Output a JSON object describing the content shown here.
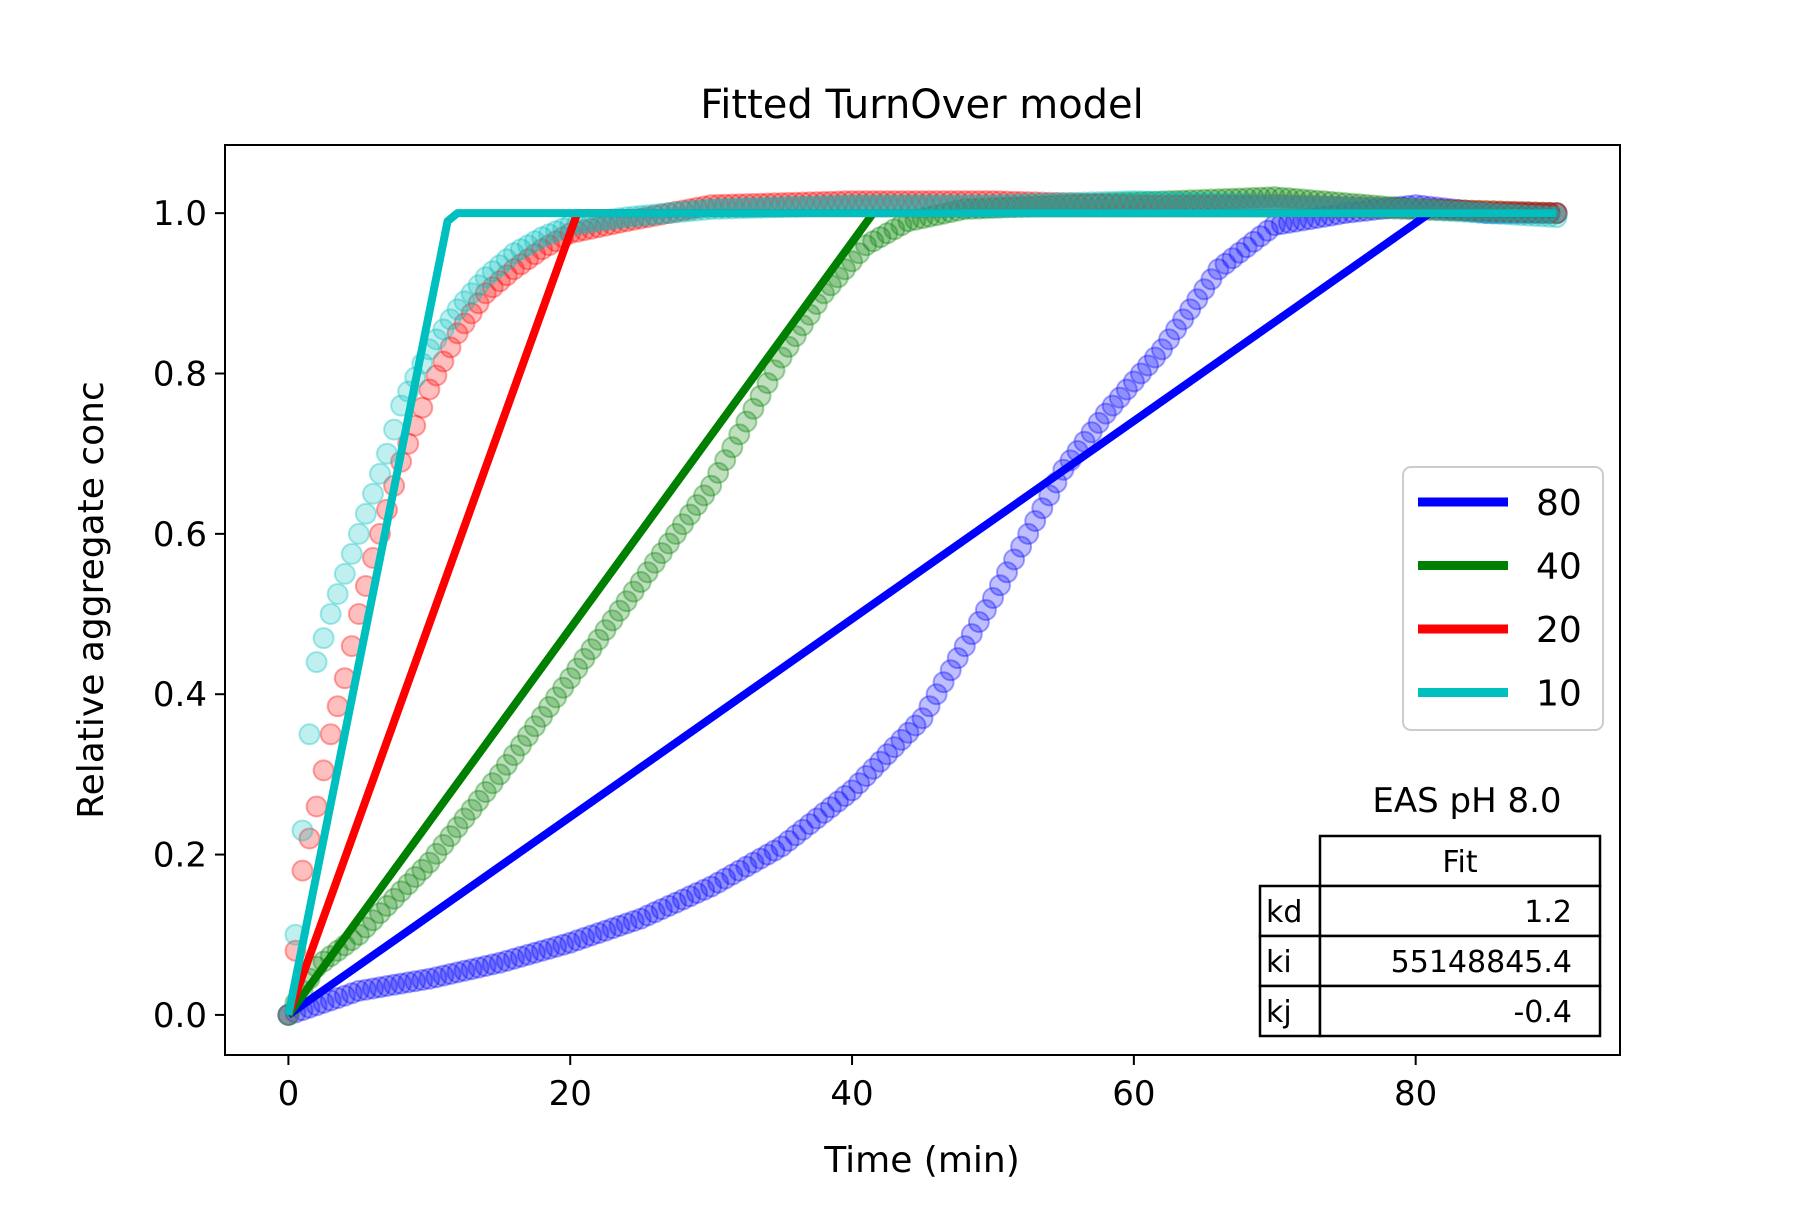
{
  "chart_data": {
    "type": "line",
    "title": "Fitted TurnOver model",
    "xlabel": "Time (min)",
    "ylabel": "Relative aggregate conc",
    "xlim": [
      -4.5,
      94.5
    ],
    "ylim": [
      -0.05,
      1.085
    ],
    "xticks": [
      0,
      20,
      40,
      60,
      80
    ],
    "yticks": [
      0.0,
      0.2,
      0.4,
      0.6,
      0.8,
      1.0
    ],
    "xtick_labels": [
      "0",
      "20",
      "40",
      "60",
      "80"
    ],
    "ytick_labels": [
      "0.0",
      "0.2",
      "0.4",
      "0.6",
      "0.8",
      "1.0"
    ],
    "grid": false,
    "legend_position": "center-right",
    "series": [
      {
        "name": "80",
        "color": "#0000ff",
        "fit_line": {
          "x": [
            0,
            81,
            90
          ],
          "y": [
            0.0,
            1.0,
            1.0
          ]
        },
        "scatter_keypoints": {
          "x": [
            0,
            5,
            10,
            15,
            20,
            25,
            30,
            35,
            40,
            45,
            50,
            55,
            58,
            62,
            66,
            70,
            75,
            80,
            85,
            90
          ],
          "y": [
            0.0,
            0.03,
            0.045,
            0.065,
            0.09,
            0.12,
            0.16,
            0.21,
            0.28,
            0.37,
            0.52,
            0.68,
            0.75,
            0.83,
            0.93,
            0.985,
            1.0,
            1.01,
            1.0,
            1.0
          ]
        }
      },
      {
        "name": "40",
        "color": "#008000",
        "fit_line": {
          "x": [
            0,
            41.5,
            90
          ],
          "y": [
            0.0,
            1.0,
            1.0
          ]
        },
        "scatter_keypoints": {
          "x": [
            0,
            2,
            5,
            10,
            15,
            20,
            25,
            30,
            35,
            38,
            41,
            44,
            48,
            55,
            70,
            80,
            90
          ],
          "y": [
            0.0,
            0.06,
            0.1,
            0.19,
            0.3,
            0.42,
            0.54,
            0.66,
            0.82,
            0.9,
            0.96,
            0.99,
            1.005,
            1.01,
            1.02,
            1.005,
            1.0
          ]
        }
      },
      {
        "name": "20",
        "color": "#ff0000",
        "fit_line": {
          "x": [
            0,
            20.5,
            90
          ],
          "y": [
            0.0,
            1.0,
            1.0
          ]
        },
        "scatter_keypoints": {
          "x": [
            0,
            0.5,
            1,
            2,
            3,
            4,
            5,
            6,
            8,
            10,
            12,
            14,
            16,
            18,
            20,
            24,
            30,
            40,
            50,
            60,
            70,
            80,
            90
          ],
          "y": [
            0.0,
            0.08,
            0.18,
            0.26,
            0.35,
            0.42,
            0.5,
            0.57,
            0.69,
            0.78,
            0.85,
            0.9,
            0.93,
            0.955,
            0.975,
            0.99,
            1.01,
            1.015,
            1.015,
            1.01,
            1.01,
            1.005,
            1.0
          ]
        }
      },
      {
        "name": "10",
        "color": "#00bfbf",
        "fit_line": {
          "x": [
            0,
            11.3,
            12,
            90
          ],
          "y": [
            0.0,
            0.99,
            1.0,
            1.0
          ]
        },
        "scatter_keypoints": {
          "x": [
            0,
            0.5,
            1,
            1.5,
            2,
            3,
            4,
            5,
            6,
            7,
            8,
            10,
            12,
            14,
            16,
            18,
            20,
            24,
            30,
            40,
            50,
            60,
            70,
            80,
            90
          ],
          "y": [
            0.0,
            0.1,
            0.23,
            0.35,
            0.44,
            0.5,
            0.55,
            0.6,
            0.65,
            0.7,
            0.76,
            0.83,
            0.88,
            0.92,
            0.95,
            0.97,
            0.985,
            0.995,
            1.005,
            1.01,
            1.01,
            1.015,
            1.01,
            1.005,
            0.995
          ]
        }
      }
    ],
    "annotation": {
      "title": "EAS pH 8.0",
      "column_header": "Fit",
      "rows": [
        {
          "label": "kd",
          "value": "1.2"
        },
        {
          "label": "ki",
          "value": "55148845.4"
        },
        {
          "label": "kj",
          "value": "-0.4"
        }
      ]
    }
  }
}
